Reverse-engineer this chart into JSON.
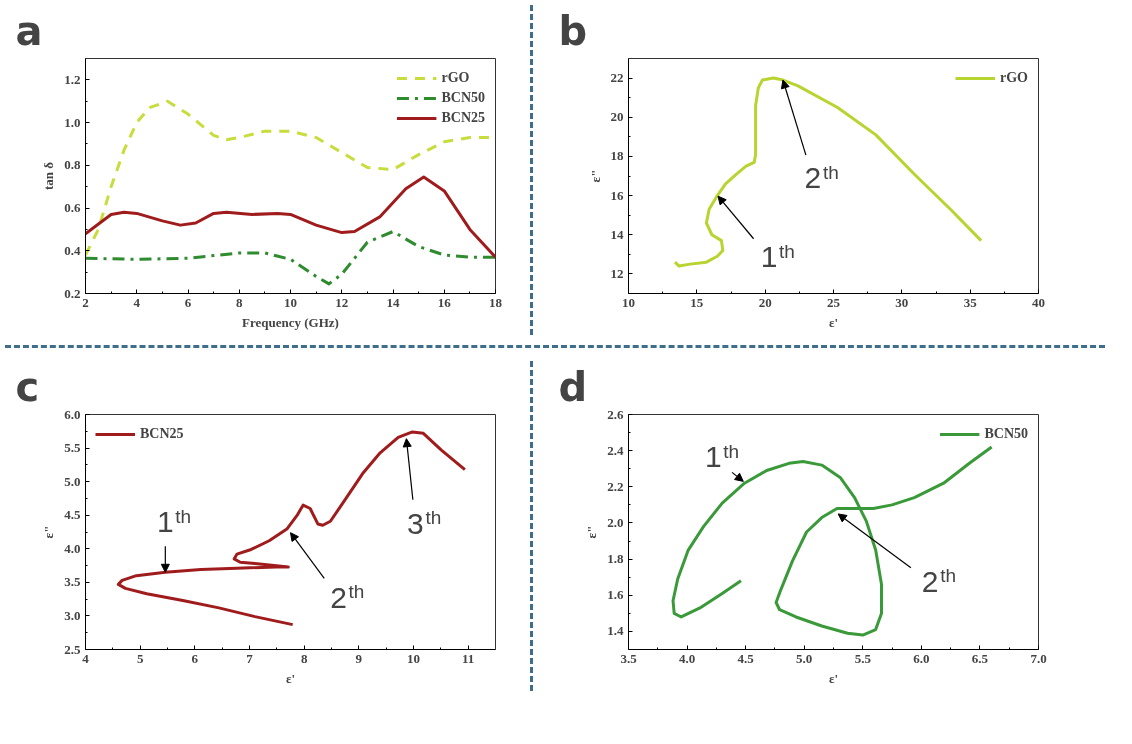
{
  "chart_data": [
    {
      "type": "line",
      "title": "a",
      "xlabel": "Frequency (GHz)",
      "ylabel": "tan δ",
      "xlim": [
        2,
        18
      ],
      "xticks": [
        2,
        4,
        6,
        8,
        10,
        12,
        14,
        16,
        18
      ],
      "ylim": [
        0.2,
        1.3
      ],
      "yticks": [
        0.2,
        0.4,
        0.6,
        0.8,
        {
          "value": 1,
          "label": "1.0"
        },
        1.2
      ],
      "legend": "top right",
      "series": [
        {
          "name": "rGO",
          "color": "#c8dc3c",
          "line_style": "dashed",
          "x": [
            2,
            2.5,
            3,
            3.5,
            4,
            4.5,
            5.2,
            6,
            7,
            7.5,
            8,
            9,
            10,
            11,
            12,
            13,
            14,
            15,
            16,
            17,
            18
          ],
          "values": [
            0.38,
            0.5,
            0.7,
            0.87,
            1.0,
            1.07,
            1.1,
            1.04,
            0.94,
            0.92,
            0.93,
            0.96,
            0.96,
            0.93,
            0.86,
            0.79,
            0.78,
            0.85,
            0.91,
            0.93,
            0.93
          ]
        },
        {
          "name": "BCN50",
          "color": "#2e8b2e",
          "line_style": "dashdot",
          "x": [
            2,
            4,
            6,
            8,
            9,
            10,
            11,
            11.5,
            12,
            13,
            14,
            15,
            16,
            17,
            18
          ],
          "values": [
            0.365,
            0.36,
            0.365,
            0.39,
            0.39,
            0.36,
            0.28,
            0.245,
            0.29,
            0.44,
            0.49,
            0.42,
            0.38,
            0.37,
            0.37
          ]
        },
        {
          "name": "BCN25",
          "color": "#a01c1c",
          "line_style": "solid",
          "x": [
            2,
            3,
            3.5,
            4,
            5,
            5.7,
            6.3,
            7,
            7.5,
            8.5,
            9.5,
            10,
            11,
            12,
            12.5,
            13.5,
            14.5,
            15.2,
            16,
            17,
            18
          ],
          "values": [
            0.48,
            0.57,
            0.58,
            0.575,
            0.54,
            0.52,
            0.53,
            0.575,
            0.58,
            0.57,
            0.575,
            0.57,
            0.52,
            0.485,
            0.49,
            0.56,
            0.69,
            0.745,
            0.68,
            0.5,
            0.37
          ]
        }
      ]
    },
    {
      "type": "line",
      "title": "b",
      "xlabel": "ε'",
      "ylabel": "ε\"",
      "xlim": [
        10,
        40
      ],
      "xticks": [
        10,
        15,
        20,
        25,
        30,
        35,
        40
      ],
      "ylim": [
        11,
        23
      ],
      "yticks": [
        12,
        14,
        16,
        18,
        20,
        22
      ],
      "legend": "top right",
      "series": [
        {
          "name": "rGO",
          "color": "#b8d430",
          "line_style": "solid",
          "x": [
            13.4,
            13.7,
            14.5,
            15.7,
            16.5,
            16.9,
            16.8,
            16.1,
            15.7,
            15.9,
            16.5,
            17.1,
            17.9,
            18.6,
            19.2,
            19.3,
            19.3,
            19.3,
            19.5,
            19.8,
            20.6,
            21.3,
            22.4,
            25.3,
            28.1,
            30.9,
            33.7,
            35.8
          ],
          "values": [
            12.6,
            12.4,
            12.5,
            12.6,
            12.9,
            13.2,
            13.7,
            14.0,
            14.6,
            15.3,
            16.0,
            16.6,
            17.1,
            17.5,
            17.7,
            18.1,
            19.1,
            20.6,
            21.5,
            21.9,
            22.0,
            21.9,
            21.6,
            20.5,
            19.1,
            17.1,
            15.2,
            13.7
          ]
        }
      ],
      "annotations": [
        {
          "text": "1$^{th}$",
          "x": 16.55,
          "y": 15.97
        },
        {
          "text": "2$^{th}$",
          "x": 21.3,
          "y": 21.9
        }
      ]
    },
    {
      "type": "line",
      "title": "c",
      "xlabel": "ε'",
      "ylabel": "ε\"",
      "xlim": [
        4,
        11.5
      ],
      "xticks": [
        4,
        5,
        6,
        7,
        8,
        9,
        10,
        11
      ],
      "ylim": [
        2.5,
        6.0
      ],
      "yticks": [
        2.5,
        {
          "value": 3,
          "label": "3.0"
        },
        3.5,
        {
          "value": 4,
          "label": "4.0"
        },
        4.5,
        {
          "value": 5,
          "label": "5.0"
        },
        5.5,
        {
          "value": 6,
          "label": "6.0"
        }
      ],
      "legend": "top left",
      "series": [
        {
          "name": "BCN25",
          "color": "#a01c1c",
          "line_style": "solid",
          "x": [
            7.79,
            7.1,
            6.44,
            5.78,
            5.12,
            4.73,
            4.6,
            4.67,
            4.93,
            5.46,
            6.11,
            6.77,
            7.49,
            7.71,
            7.1,
            6.83,
            6.72,
            6.77,
            7.03,
            7.36,
            7.69,
            7.88,
            7.98,
            8.11,
            8.25,
            8.34,
            8.48,
            8.74,
            9.07,
            9.39,
            9.72,
            9.98,
            10.18,
            10.51,
            10.94
          ],
          "values": [
            2.87,
            2.99,
            3.12,
            3.23,
            3.33,
            3.41,
            3.47,
            3.53,
            3.6,
            3.65,
            3.69,
            3.71,
            3.73,
            3.73,
            3.78,
            3.8,
            3.85,
            3.92,
            3.99,
            4.12,
            4.3,
            4.51,
            4.65,
            4.6,
            4.37,
            4.35,
            4.41,
            4.72,
            5.12,
            5.43,
            5.66,
            5.74,
            5.72,
            5.47,
            5.18
          ]
        }
      ],
      "annotations": [
        {
          "text": "1$^{th}$",
          "x": 5.46,
          "y": 3.65
        },
        {
          "text": "2$^{th}$",
          "x": 7.75,
          "y": 4.24
        },
        {
          "text": "3$^{th}$",
          "x": 9.87,
          "y": 5.64
        }
      ]
    },
    {
      "type": "line",
      "title": "d",
      "xlabel": "ε'",
      "ylabel": "ε\"",
      "xlim": [
        3.5,
        7.0
      ],
      "xticks": [
        3.5,
        {
          "value": 4,
          "label": "4.0"
        },
        4.5,
        {
          "value": 5,
          "label": "5.0"
        },
        5.5,
        {
          "value": 6,
          "label": "6.0"
        },
        6.5,
        {
          "value": 7,
          "label": "7.0"
        }
      ],
      "ylim": [
        1.3,
        2.6
      ],
      "yticks": [
        1.4,
        1.6,
        1.8,
        {
          "value": 2,
          "label": "2.0"
        },
        2.2,
        2.4,
        2.6
      ],
      "legend": "top right",
      "series": [
        {
          "name": "BCN50",
          "color": "#3a9a3a",
          "line_style": "solid",
          "x": [
            4.46,
            4.3,
            4.11,
            3.95,
            3.89,
            3.88,
            3.92,
            4.01,
            4.14,
            4.3,
            4.49,
            4.68,
            4.87,
            4.99,
            5.15,
            5.31,
            5.43,
            5.53,
            5.61,
            5.66,
            5.66,
            5.61,
            5.5,
            5.37,
            5.15,
            4.93,
            4.79,
            4.76,
            4.8,
            4.9,
            5.02,
            5.15,
            5.28,
            5.43,
            5.59,
            5.75,
            5.94,
            6.19,
            6.41,
            6.6
          ],
          "values": [
            1.68,
            1.61,
            1.53,
            1.48,
            1.5,
            1.57,
            1.69,
            1.85,
            1.98,
            2.11,
            2.22,
            2.29,
            2.33,
            2.34,
            2.32,
            2.25,
            2.14,
            2.01,
            1.85,
            1.66,
            1.5,
            1.41,
            1.38,
            1.39,
            1.43,
            1.48,
            1.52,
            1.56,
            1.63,
            1.79,
            1.95,
            2.03,
            2.08,
            2.08,
            2.08,
            2.1,
            2.14,
            2.22,
            2.33,
            2.42
          ]
        }
      ],
      "annotations": [
        {
          "text": "1$^{th}$",
          "x": 4.48,
          "y": 2.23
        },
        {
          "text": "2$^{th}$",
          "x": 5.29,
          "y": 2.05
        }
      ]
    }
  ]
}
